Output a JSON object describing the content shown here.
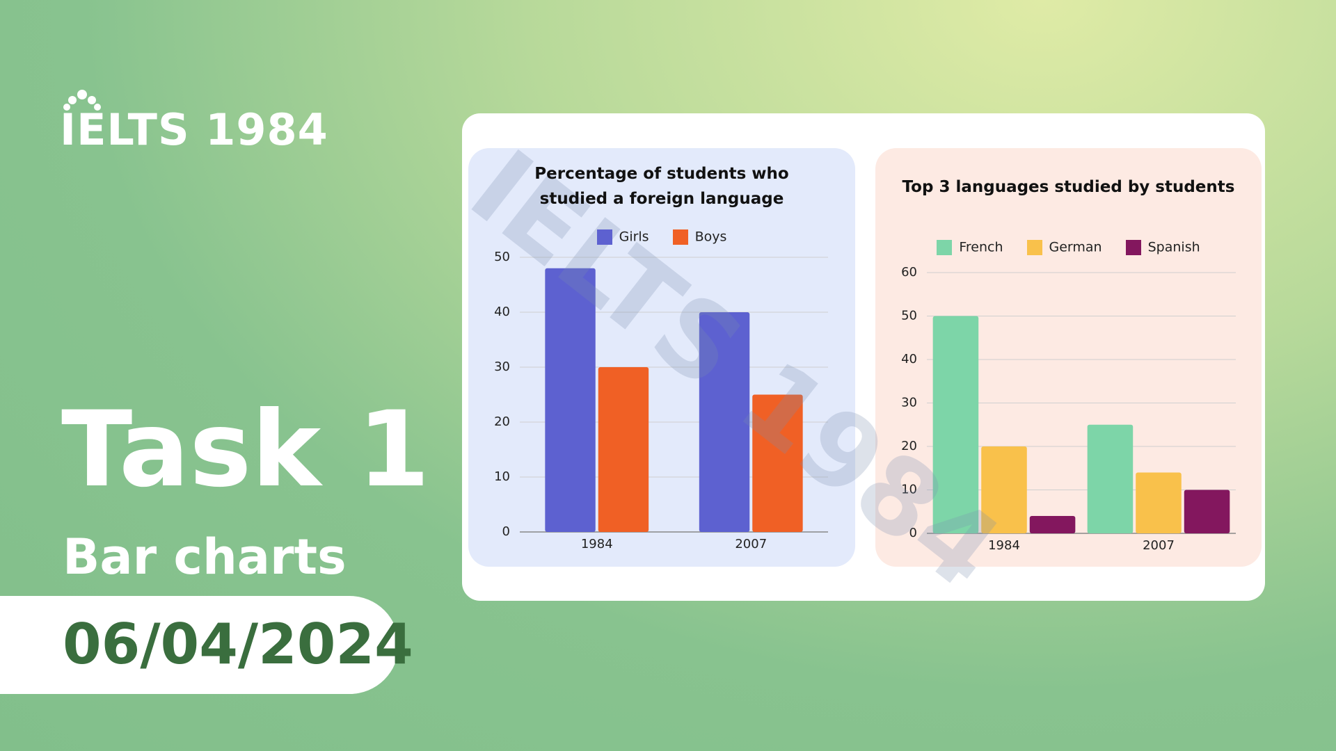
{
  "header": {
    "brand": "IELTS 1984",
    "task": "Task 1",
    "subtitle": "Bar charts",
    "date": "06/04/2024"
  },
  "chart_data": [
    {
      "type": "bar",
      "title": "Percentage of students who studied a foreign language",
      "categories": [
        "1984",
        "2007"
      ],
      "series": [
        {
          "name": "Girls",
          "color": "#5d61d0",
          "values": [
            48,
            40
          ]
        },
        {
          "name": "Boys",
          "color": "#f06025",
          "values": [
            30,
            25
          ]
        }
      ],
      "ylim": [
        0,
        50
      ],
      "yticks": [
        0,
        10,
        20,
        30,
        40,
        50
      ],
      "grid": true,
      "legend": "top"
    },
    {
      "type": "bar",
      "title": "Top 3 languages studied by students",
      "categories": [
        "1984",
        "2007"
      ],
      "series": [
        {
          "name": "French",
          "color": "#7dd5a8",
          "values": [
            50,
            25
          ]
        },
        {
          "name": "German",
          "color": "#f9c14b",
          "values": [
            20,
            14
          ]
        },
        {
          "name": "Spanish",
          "color": "#83175e",
          "values": [
            4,
            10
          ]
        }
      ],
      "ylim": [
        0,
        60
      ],
      "yticks": [
        0,
        10,
        20,
        30,
        40,
        50,
        60
      ],
      "grid": true,
      "legend": "top"
    }
  ]
}
